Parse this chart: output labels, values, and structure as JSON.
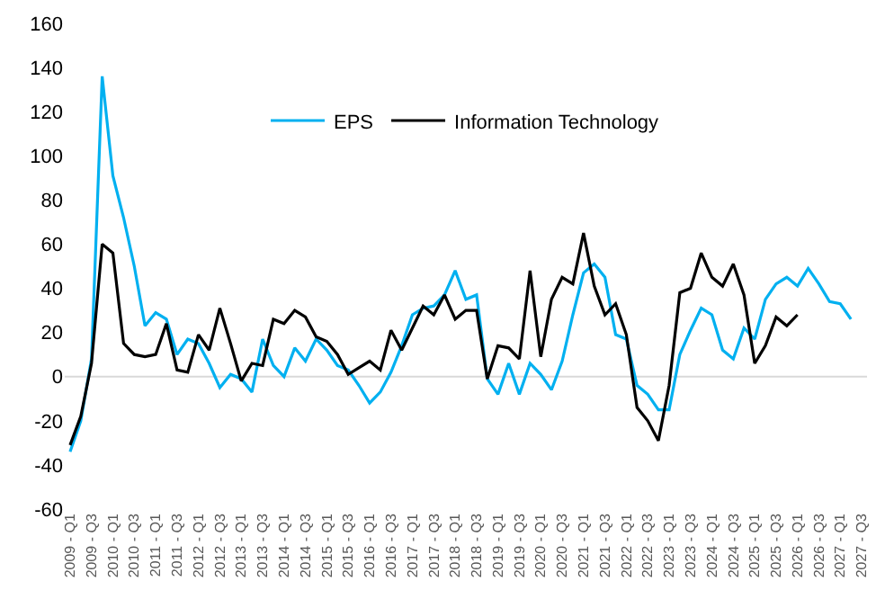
{
  "chart_data": {
    "type": "line",
    "categories": [
      "2009 - Q1",
      null,
      "2009 - Q3",
      null,
      "2010 - Q1",
      null,
      "2010 - Q3",
      null,
      "2011 - Q1",
      null,
      "2011 - Q3",
      null,
      "2012 - Q1",
      null,
      "2012 - Q3",
      null,
      "2013 - Q1",
      null,
      "2013 - Q3",
      null,
      "2014 - Q1",
      null,
      "2014 - Q3",
      null,
      "2015 - Q1",
      null,
      "2015 - Q3",
      null,
      "2016 - Q1",
      null,
      "2016 - Q3",
      null,
      "2017 - Q1",
      null,
      "2017 - Q3",
      null,
      "2018 - Q1",
      null,
      "2018 - Q3",
      null,
      "2019 - Q1",
      null,
      "2019 - Q3",
      null,
      "2020 - Q1",
      null,
      "2020 - Q3",
      null,
      "2021 - Q1",
      null,
      "2021 - Q3",
      null,
      "2022 - Q1",
      null,
      "2022 - Q3",
      null,
      "2023 - Q1",
      null,
      "2023 - Q3",
      null,
      "2024 - Q1",
      null,
      "2024 - Q3",
      null,
      "2025 - Q1",
      null,
      "2025 - Q3",
      null,
      "2026 - Q1",
      null,
      "2026 - Q3",
      null,
      "2027 - Q1",
      null,
      "2027 - Q3"
    ],
    "series": [
      {
        "name": "EPS",
        "color": "#00b0f0",
        "values": [
          -34,
          -20,
          8,
          136,
          91,
          72,
          50,
          23,
          29,
          26,
          10,
          17,
          15,
          6,
          -5,
          1,
          -1,
          -7,
          17,
          5,
          0,
          13,
          7,
          17,
          12,
          5,
          3,
          -4,
          -12,
          -7,
          2,
          14,
          28,
          31,
          32,
          37,
          48,
          35,
          37,
          -1,
          -8,
          6,
          -8,
          6,
          1,
          -6,
          7,
          28,
          47,
          51,
          45,
          19,
          17,
          -4,
          -8,
          -15,
          -15,
          10,
          21,
          31,
          28,
          12,
          8,
          22,
          17,
          35,
          42,
          45,
          41,
          49,
          42,
          34,
          33,
          26,
          null
        ]
      },
      {
        "name": "Information Technology",
        "color": "#000000",
        "values": [
          -31,
          -18,
          6,
          60,
          56,
          15,
          10,
          9,
          10,
          24,
          3,
          2,
          19,
          12,
          31,
          15,
          -2,
          6,
          5,
          26,
          24,
          30,
          27,
          18,
          16,
          10,
          1,
          4,
          7,
          3,
          21,
          12,
          22,
          32,
          28,
          37,
          26,
          30,
          30,
          -1,
          14,
          13,
          8,
          48,
          9,
          35,
          45,
          42,
          65,
          41,
          28,
          33,
          19,
          -14,
          -20,
          -29,
          -4,
          38,
          40,
          56,
          45,
          41,
          51,
          37,
          6,
          14,
          27,
          23,
          28,
          null,
          null,
          null,
          null,
          null,
          null
        ]
      }
    ],
    "ylim": [
      -60,
      160
    ],
    "yticks": [
      -60,
      -40,
      -20,
      0,
      20,
      40,
      60,
      80,
      100,
      120,
      140,
      160
    ],
    "grid": false,
    "ref_lines": [
      {
        "axis": "y",
        "value": 0,
        "color": "#d9d9d9"
      }
    ],
    "legend": "top",
    "marker": "none",
    "line_style": "solid"
  }
}
